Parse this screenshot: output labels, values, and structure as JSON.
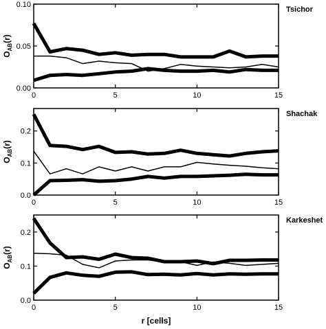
{
  "chart_data": [
    {
      "type": "line",
      "title": "Tsichor",
      "ylabel": "O",
      "ylabel_sub": "AB",
      "ylabel_tail": "(r)",
      "xlabel": "",
      "xlim": [
        0,
        15
      ],
      "ylim": [
        0,
        0.1
      ],
      "xticks": [
        0,
        5,
        10,
        15
      ],
      "xtick_labels": [
        "0",
        "5",
        "10",
        "15"
      ],
      "yticks": [
        0,
        0.05,
        0.1
      ],
      "ytick_labels": [
        "0.00",
        "0.05",
        "0.10"
      ],
      "x": [
        0,
        1,
        2,
        3,
        4,
        5,
        6,
        7,
        8,
        9,
        10,
        11,
        12,
        13,
        14,
        15
      ],
      "series": [
        {
          "role": "upper",
          "values": [
            0.077,
            0.043,
            0.047,
            0.045,
            0.04,
            0.042,
            0.039,
            0.04,
            0.04,
            0.037,
            0.037,
            0.037,
            0.044,
            0.037,
            0.038,
            0.038
          ]
        },
        {
          "role": "observed",
          "values": [
            0.038,
            0.038,
            0.036,
            0.029,
            0.032,
            0.03,
            0.029,
            0.02,
            0.023,
            0.028,
            0.026,
            0.025,
            0.024,
            0.025,
            0.028,
            0.025
          ]
        },
        {
          "role": "lower",
          "values": [
            0.009,
            0.015,
            0.016,
            0.015,
            0.017,
            0.019,
            0.02,
            0.023,
            0.021,
            0.02,
            0.02,
            0.021,
            0.019,
            0.022,
            0.021,
            0.021
          ]
        }
      ]
    },
    {
      "type": "line",
      "title": "Shachak",
      "ylabel": "O",
      "ylabel_sub": "AB",
      "ylabel_tail": "(r)",
      "xlabel": "",
      "xlim": [
        0,
        15
      ],
      "ylim": [
        0,
        0.27
      ],
      "xticks": [
        0,
        5,
        10,
        15
      ],
      "xtick_labels": [
        "0",
        "5",
        "10",
        "15"
      ],
      "yticks": [
        0,
        0.1,
        0.2
      ],
      "ytick_labels": [
        "0.0",
        "0.1",
        "0.2"
      ],
      "x": [
        0,
        1,
        2,
        3,
        4,
        5,
        6,
        7,
        8,
        9,
        10,
        11,
        12,
        13,
        14,
        15
      ],
      "series": [
        {
          "role": "upper",
          "values": [
            0.252,
            0.155,
            0.152,
            0.142,
            0.152,
            0.133,
            0.135,
            0.128,
            0.13,
            0.14,
            0.13,
            0.126,
            0.122,
            0.13,
            0.135,
            0.138
          ]
        },
        {
          "role": "observed",
          "values": [
            0.137,
            0.066,
            0.082,
            0.066,
            0.088,
            0.075,
            0.088,
            0.075,
            0.088,
            0.088,
            0.102,
            0.097,
            0.093,
            0.09,
            0.085,
            0.082
          ]
        },
        {
          "role": "lower",
          "values": [
            0.0,
            0.045,
            0.046,
            0.048,
            0.043,
            0.045,
            0.05,
            0.058,
            0.053,
            0.058,
            0.058,
            0.06,
            0.062,
            0.065,
            0.063,
            0.063
          ]
        }
      ]
    },
    {
      "type": "line",
      "title": "Karkeshet",
      "ylabel": "O",
      "ylabel_sub": "AB",
      "ylabel_tail": "(r)",
      "xlabel": "r [cells]",
      "xlim": [
        0,
        15
      ],
      "ylim": [
        0,
        0.25
      ],
      "xticks": [
        0,
        5,
        10,
        15
      ],
      "xtick_labels": [
        "0",
        "5",
        "10",
        "15"
      ],
      "yticks": [
        0,
        0.1,
        0.2
      ],
      "ytick_labels": [
        "0.0",
        "0.1",
        "0.2"
      ],
      "x": [
        0,
        1,
        2,
        3,
        4,
        5,
        6,
        7,
        8,
        9,
        10,
        11,
        12,
        13,
        14,
        15
      ],
      "series": [
        {
          "role": "upper",
          "values": [
            0.24,
            0.168,
            0.125,
            0.127,
            0.12,
            0.135,
            0.125,
            0.123,
            0.113,
            0.113,
            0.115,
            0.107,
            0.117,
            0.117,
            0.118,
            0.118
          ]
        },
        {
          "role": "observed",
          "values": [
            0.138,
            0.136,
            0.132,
            0.105,
            0.095,
            0.115,
            0.118,
            0.118,
            0.113,
            0.113,
            0.102,
            0.112,
            0.108,
            0.102,
            0.105,
            0.108
          ]
        },
        {
          "role": "lower",
          "values": [
            0.02,
            0.067,
            0.08,
            0.073,
            0.07,
            0.082,
            0.083,
            0.075,
            0.076,
            0.074,
            0.078,
            0.074,
            0.077,
            0.076,
            0.077,
            0.077
          ]
        }
      ]
    }
  ]
}
